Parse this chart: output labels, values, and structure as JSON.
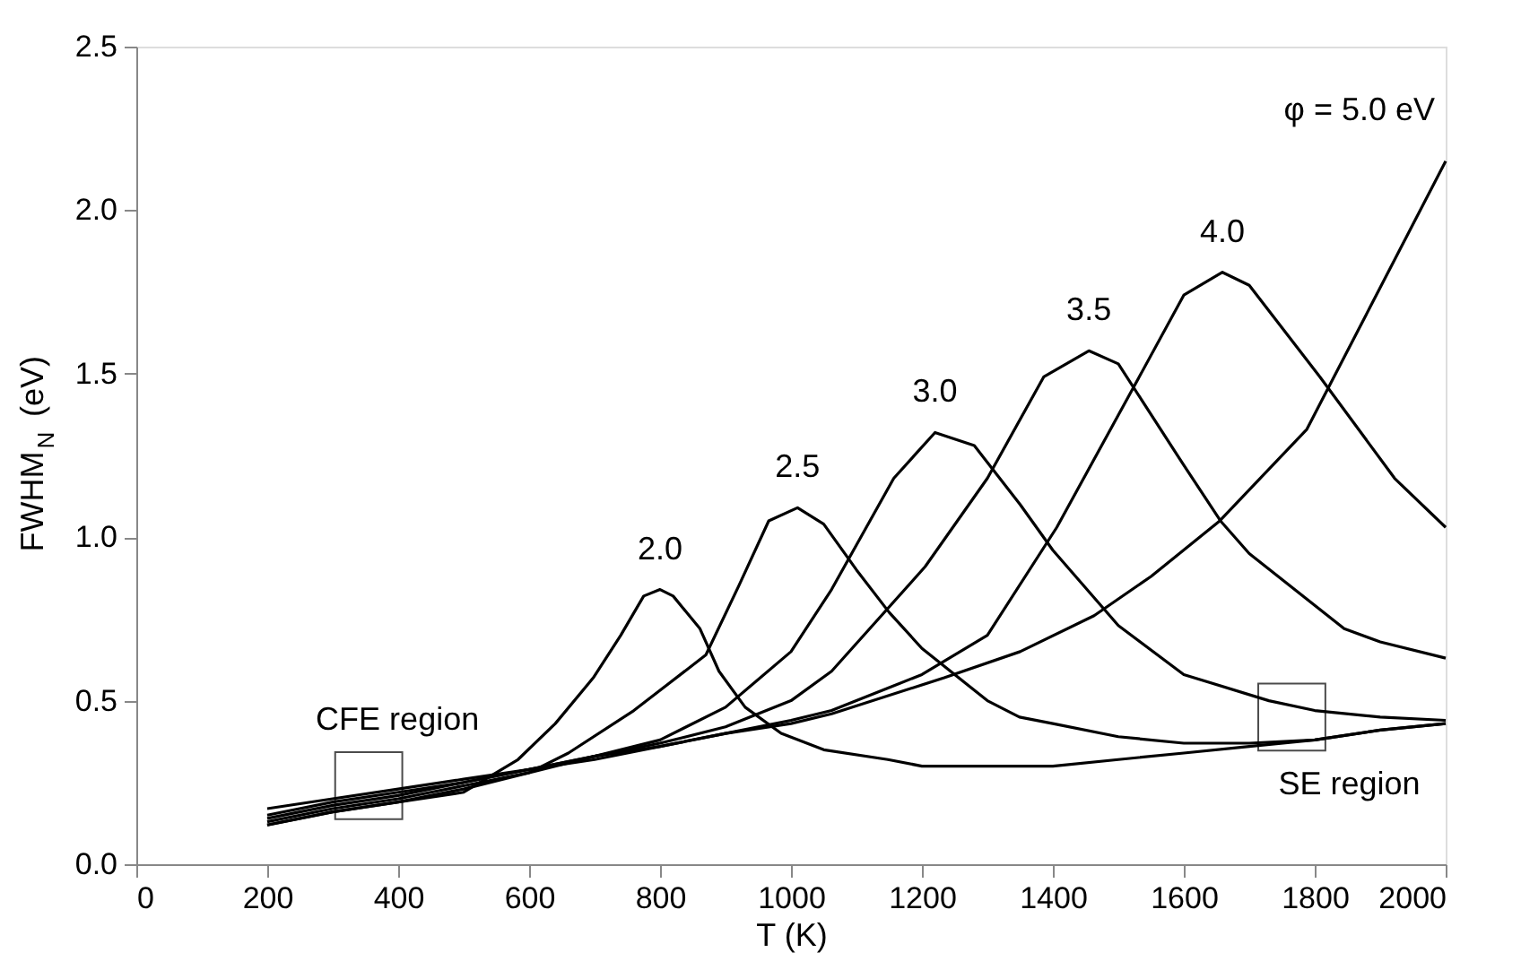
{
  "chart_data": {
    "type": "line",
    "xlabel": "T (K)",
    "ylabel": "FWHM$_{N}$ (eV)",
    "xlim": [
      0,
      2000
    ],
    "xticks": [
      0,
      200,
      400,
      600,
      800,
      1000,
      1200,
      1400,
      1600,
      1800,
      2000
    ],
    "ylim": [
      0,
      2.5
    ],
    "yticks": [
      {
        "value": 0,
        "label": "0.0"
      },
      0.5,
      {
        "value": 1,
        "label": "1.0"
      },
      1.5,
      {
        "value": 2,
        "label": "2.0"
      },
      2.5
    ],
    "grid": false,
    "marker": "none",
    "line_style": "solid",
    "series": [
      {
        "name": "2.0",
        "color": "#000000",
        "x": [
          200,
          300,
          400,
          500,
          583,
          640,
          698,
          740,
          775,
          800,
          820,
          861,
          890,
          930,
          985,
          1050,
          1148,
          1200,
          1300,
          1400,
          1500,
          1600,
          1700,
          1800,
          1900,
          2000
        ],
        "values": [
          0.12,
          0.16,
          0.19,
          0.22,
          0.32,
          0.43,
          0.57,
          0.7,
          0.82,
          0.84,
          0.82,
          0.72,
          0.59,
          0.48,
          0.4,
          0.35,
          0.32,
          0.3,
          0.3,
          0.3,
          0.32,
          0.34,
          0.36,
          0.38,
          0.41,
          0.43
        ]
      },
      {
        "name": "2.5",
        "color": "#000000",
        "x": [
          200,
          300,
          400,
          500,
          600,
          660,
          760,
          870,
          920,
          966,
          1010,
          1050,
          1100,
          1150,
          1200,
          1300,
          1349,
          1400,
          1500,
          1600,
          1700,
          1800,
          1900,
          2000
        ],
        "values": [
          0.12,
          0.16,
          0.19,
          0.23,
          0.28,
          0.34,
          0.47,
          0.64,
          0.85,
          1.05,
          1.09,
          1.04,
          0.9,
          0.77,
          0.66,
          0.5,
          0.45,
          0.43,
          0.39,
          0.37,
          0.37,
          0.38,
          0.41,
          0.43
        ]
      },
      {
        "name": "3.0",
        "color": "#000000",
        "x": [
          200,
          300,
          400,
          500,
          600,
          700,
          800,
          900,
          1000,
          1062,
          1157,
          1220,
          1280,
          1350,
          1400,
          1500,
          1600,
          1730,
          1800,
          1900,
          2000
        ],
        "values": [
          0.13,
          0.17,
          0.2,
          0.24,
          0.28,
          0.33,
          0.38,
          0.48,
          0.65,
          0.84,
          1.18,
          1.32,
          1.28,
          1.1,
          0.96,
          0.73,
          0.58,
          0.5,
          0.47,
          0.45,
          0.44
        ]
      },
      {
        "name": "3.5",
        "color": "#000000",
        "x": [
          200,
          300,
          400,
          500,
          600,
          700,
          800,
          900,
          1000,
          1062,
          1205,
          1300,
          1386,
          1455,
          1500,
          1600,
          1656,
          1700,
          1845,
          1900,
          2000
        ],
        "values": [
          0.14,
          0.18,
          0.21,
          0.25,
          0.29,
          0.33,
          0.37,
          0.42,
          0.5,
          0.59,
          0.91,
          1.18,
          1.49,
          1.57,
          1.53,
          1.22,
          1.05,
          0.95,
          0.72,
          0.68,
          0.63
        ]
      },
      {
        "name": "4.0",
        "color": "#000000",
        "x": [
          200,
          300,
          400,
          500,
          600,
          700,
          800,
          900,
          1000,
          1062,
          1200,
          1300,
          1406,
          1521,
          1600,
          1659,
          1700,
          1808,
          1922,
          2000
        ],
        "values": [
          0.15,
          0.19,
          0.22,
          0.25,
          0.29,
          0.32,
          0.36,
          0.4,
          0.44,
          0.47,
          0.58,
          0.7,
          1.03,
          1.45,
          1.74,
          1.81,
          1.77,
          1.49,
          1.18,
          1.03
        ]
      },
      {
        "name": "φ = 5.0 eV",
        "color": "#000000",
        "x": [
          200,
          300,
          400,
          500,
          600,
          700,
          800,
          900,
          1000,
          1062,
          1234,
          1350,
          1463,
          1550,
          1655,
          1788,
          1894,
          2000
        ],
        "values": [
          0.17,
          0.2,
          0.23,
          0.26,
          0.29,
          0.33,
          0.36,
          0.4,
          0.43,
          0.46,
          0.57,
          0.65,
          0.76,
          0.88,
          1.05,
          1.33,
          1.74,
          2.15
        ]
      }
    ],
    "annotations": [
      {
        "text": "CFE region",
        "x": 355,
        "y": 0.24
      },
      {
        "text": "SE region",
        "x": 1765,
        "y": 0.45
      }
    ]
  }
}
